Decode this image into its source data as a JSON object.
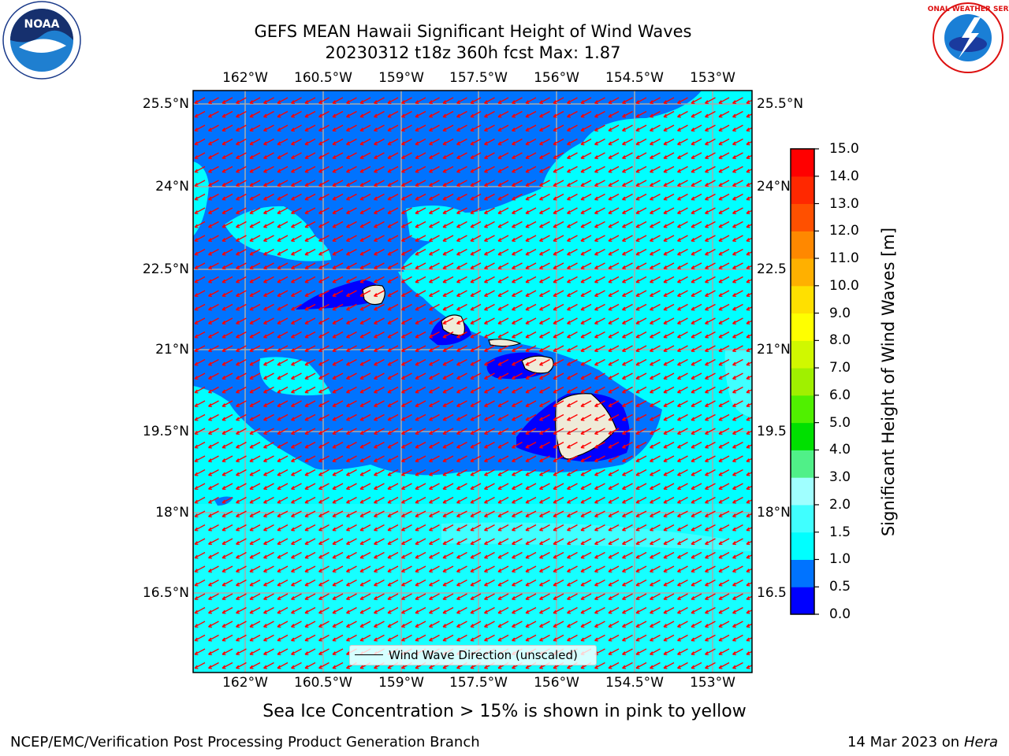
{
  "header": {
    "title": "GEFS MEAN Hawaii Significant Height of Wind Waves",
    "subtitle": "20230312 t18z 360h fcst   Max: 1.87"
  },
  "logos": {
    "noaa": {
      "text": "NOAA",
      "icon": "noaa-logo-icon"
    },
    "nws": {
      "text": "NATIONAL WEATHER SERVICE",
      "icon": "nws-logo-icon"
    }
  },
  "map": {
    "lon_ticks": [
      "162°W",
      "160.5°W",
      "159°W",
      "157.5°W",
      "156°W",
      "154.5°W",
      "153°W"
    ],
    "lat_ticks_left": [
      "25.5°N",
      "24°N",
      "22.5°N",
      "21°N",
      "19.5°N",
      "18°N",
      "16.5°N"
    ],
    "lat_ticks_right": [
      "25.5°N",
      "24°N",
      "22.5",
      "21°N",
      "19.5",
      "18°N",
      "16.5"
    ],
    "grid": true,
    "arrow_color": "#ff0000",
    "land_color": "#efebd8",
    "ocean_color": "#00ffff",
    "legend": {
      "label": "Wind Wave Direction (unscaled)"
    }
  },
  "colorbar": {
    "title": "Significant Height of Wind Waves [m]",
    "levels": [
      "0.0",
      "0.5",
      "1.0",
      "1.5",
      "2.0",
      "3.0",
      "4.0",
      "5.0",
      "6.0",
      "7.0",
      "8.0",
      "9.0",
      "10.0",
      "11.0",
      "12.0",
      "13.0",
      "14.0",
      "15.0"
    ],
    "colors": [
      "#0000ff",
      "#0073ff",
      "#00ffff",
      "#40ffff",
      "#a0ffff",
      "#50f088",
      "#00e000",
      "#50f000",
      "#a0f000",
      "#d0f800",
      "#ffff00",
      "#ffe000",
      "#ffb000",
      "#ff8800",
      "#ff5000",
      "#ff2800",
      "#ff0000"
    ]
  },
  "footer": {
    "note": "Sea Ice Concentration > 15% is shown in pink to yellow",
    "credit": "NCEP/EMC/Verification Post Processing Product Generation Branch",
    "date": "14 Mar 2023 on",
    "machine": "Hera"
  }
}
